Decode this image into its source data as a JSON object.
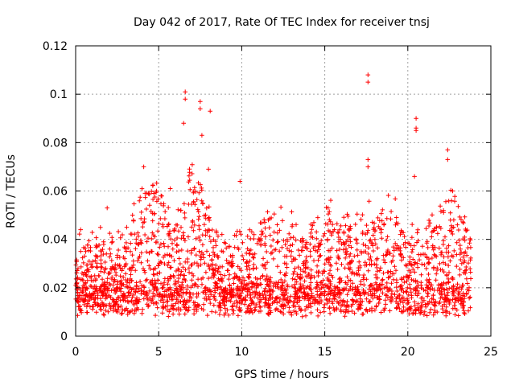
{
  "chart_data": {
    "type": "scatter",
    "title": "Day 042 of 2017, Rate Of TEC Index for receiver tnsj",
    "xlabel": "GPS time / hours",
    "ylabel": "ROTI / TECUs",
    "xlim": [
      0,
      25
    ],
    "ylim": [
      0,
      0.12
    ],
    "xticks": [
      0,
      5,
      10,
      15,
      20,
      25
    ],
    "xtick_labels": [
      "0",
      "5",
      "10",
      "15",
      "20",
      "25"
    ],
    "yticks": [
      0,
      0.02,
      0.04,
      0.06,
      0.08,
      0.1,
      0.12
    ],
    "ytick_labels": [
      "0",
      "0.02",
      "0.04",
      "0.06",
      "0.08",
      "0.1",
      "0.12"
    ],
    "grid": true,
    "marker": "plus",
    "color": "#ff0000",
    "series": [
      {
        "name": "ROTI",
        "x_range": [
          0,
          23.8
        ],
        "typical_range": [
          0.005,
          0.03
        ],
        "notable_points": [
          {
            "x": 0.3,
            "y": 0.044
          },
          {
            "x": 1.9,
            "y": 0.053
          },
          {
            "x": 4.1,
            "y": 0.07
          },
          {
            "x": 5.7,
            "y": 0.061
          },
          {
            "x": 6.6,
            "y": 0.101
          },
          {
            "x": 6.6,
            "y": 0.098
          },
          {
            "x": 6.5,
            "y": 0.088
          },
          {
            "x": 7.5,
            "y": 0.097
          },
          {
            "x": 7.5,
            "y": 0.094
          },
          {
            "x": 7.6,
            "y": 0.083
          },
          {
            "x": 8.1,
            "y": 0.093
          },
          {
            "x": 8.0,
            "y": 0.069
          },
          {
            "x": 9.9,
            "y": 0.064
          },
          {
            "x": 15.2,
            "y": 0.053
          },
          {
            "x": 17.6,
            "y": 0.108
          },
          {
            "x": 17.6,
            "y": 0.105
          },
          {
            "x": 17.6,
            "y": 0.073
          },
          {
            "x": 17.6,
            "y": 0.07
          },
          {
            "x": 20.5,
            "y": 0.09
          },
          {
            "x": 20.5,
            "y": 0.086
          },
          {
            "x": 20.5,
            "y": 0.085
          },
          {
            "x": 20.4,
            "y": 0.066
          },
          {
            "x": 22.4,
            "y": 0.077
          },
          {
            "x": 22.4,
            "y": 0.073
          },
          {
            "x": 22.7,
            "y": 0.06
          }
        ]
      }
    ]
  }
}
